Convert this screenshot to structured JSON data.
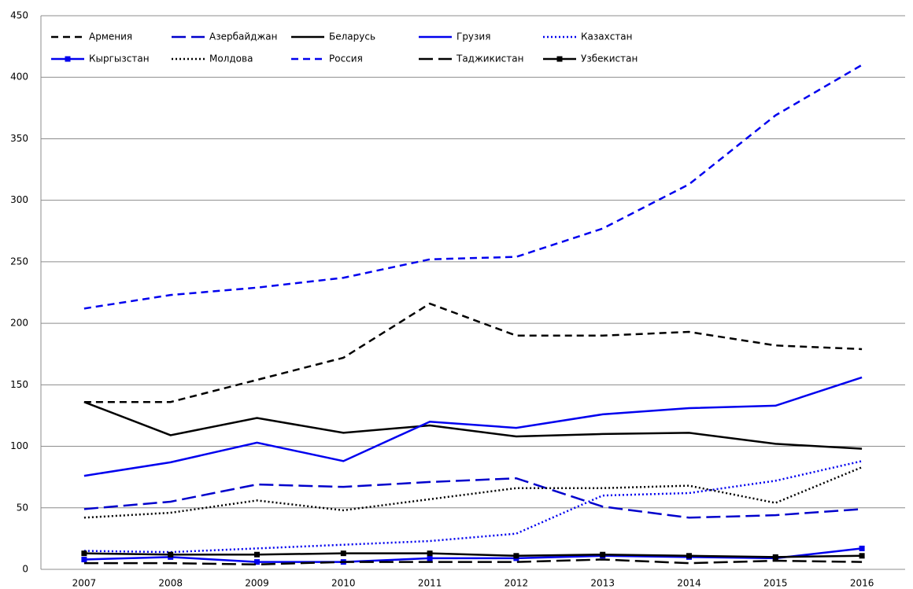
{
  "chart_data": {
    "type": "line",
    "categories": [
      "2007",
      "2008",
      "2009",
      "2010",
      "2011",
      "2012",
      "2013",
      "2014",
      "2015",
      "2016"
    ],
    "ylim": [
      0,
      450
    ],
    "yticks": [
      0,
      50,
      100,
      150,
      200,
      250,
      300,
      350,
      400,
      450
    ],
    "grid": true,
    "series": [
      {
        "name": "Армения",
        "color": "#000000",
        "dash": "dashed",
        "values": [
          136,
          136,
          154,
          172,
          216,
          190,
          190,
          193,
          182,
          179
        ]
      },
      {
        "name": "Азербайджан",
        "color": "#0000cc",
        "dash": "longdash",
        "values": [
          49,
          55,
          69,
          67,
          71,
          74,
          51,
          42,
          44,
          49
        ]
      },
      {
        "name": "Беларусь",
        "color": "#000000",
        "dash": "solid",
        "values": [
          136,
          109,
          123,
          111,
          117,
          108,
          110,
          111,
          102,
          98
        ]
      },
      {
        "name": "Грузия",
        "color": "#0000ee",
        "dash": "solid",
        "values": [
          76,
          87,
          103,
          88,
          120,
          115,
          126,
          131,
          133,
          156
        ]
      },
      {
        "name": "Казахстан",
        "color": "#0000ee",
        "dash": "dotted",
        "values": [
          15,
          14,
          17,
          20,
          23,
          29,
          60,
          62,
          72,
          88
        ]
      },
      {
        "name": "Кыргызстан",
        "color": "#0000ee",
        "dash": "solid",
        "marker": "square",
        "values": [
          8,
          10,
          6,
          6,
          9,
          9,
          11,
          10,
          9,
          17
        ]
      },
      {
        "name": "Молдова",
        "color": "#000000",
        "dash": "dotted",
        "values": [
          42,
          46,
          56,
          48,
          57,
          66,
          66,
          68,
          54,
          83
        ]
      },
      {
        "name": "Россия",
        "color": "#0000ee",
        "dash": "dashed",
        "values": [
          212,
          223,
          229,
          237,
          252,
          254,
          277,
          313,
          369,
          410
        ]
      },
      {
        "name": "Таджикистан",
        "color": "#000000",
        "dash": "longdash",
        "values": [
          5,
          5,
          4,
          6,
          6,
          6,
          8,
          5,
          7,
          6
        ]
      },
      {
        "name": "Узбекистан",
        "color": "#000000",
        "dash": "solid",
        "marker": "square",
        "values": [
          13,
          12,
          12,
          13,
          13,
          11,
          12,
          11,
          10,
          11
        ]
      }
    ]
  }
}
